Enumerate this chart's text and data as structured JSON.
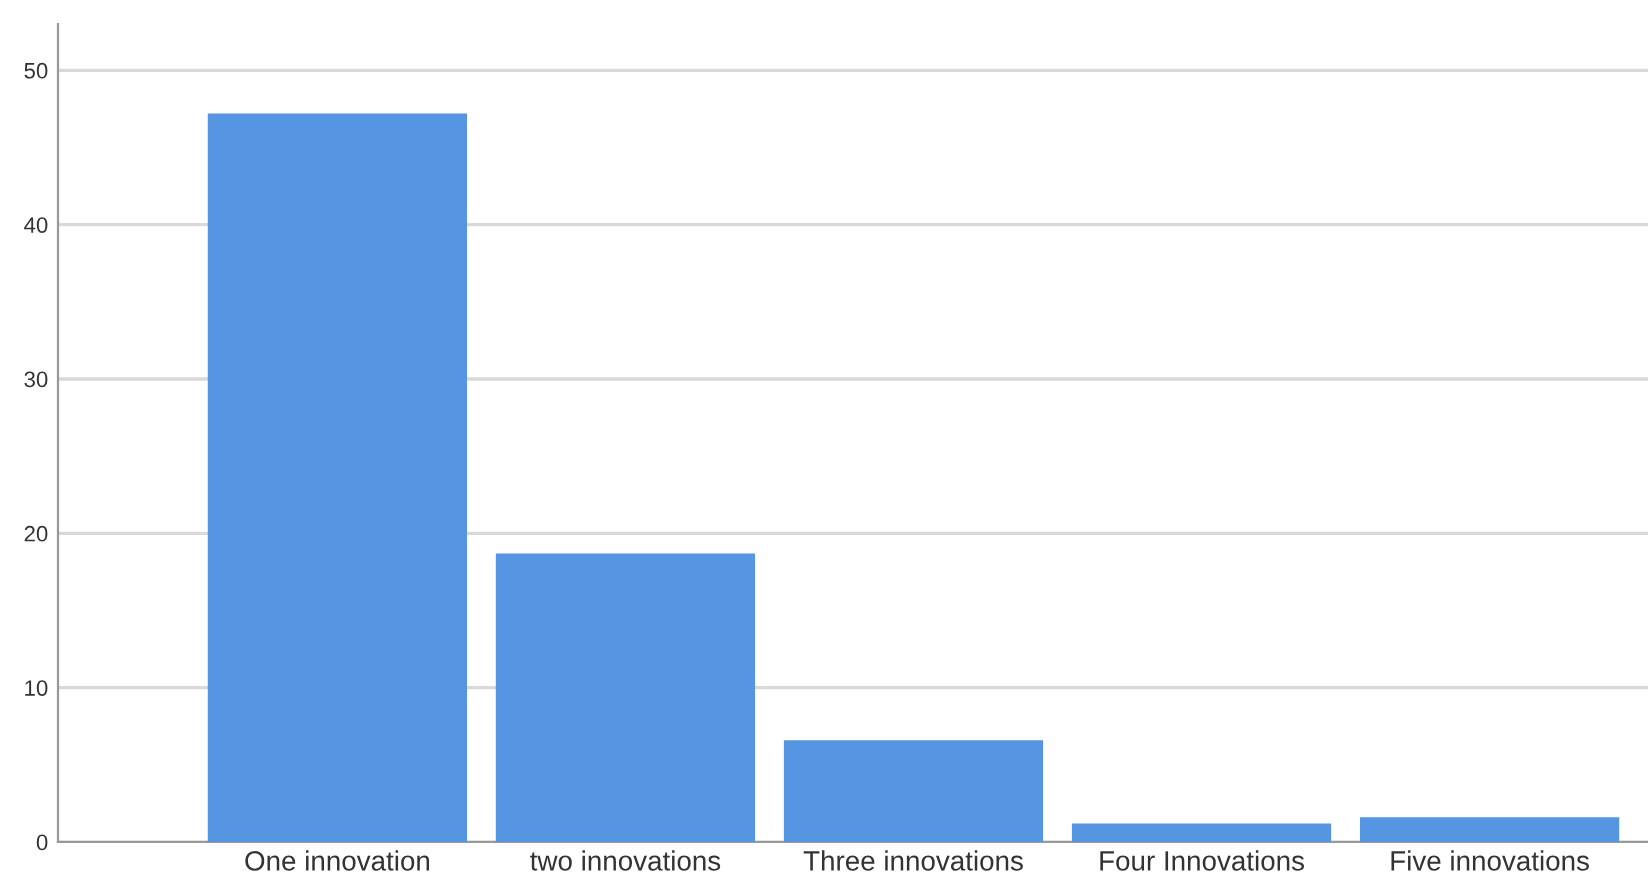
{
  "chart_data": {
    "type": "bar",
    "categories": [
      "One innovation",
      "two innovations",
      "Three innovations",
      "Four Innovations",
      "Five innovations"
    ],
    "values": [
      47.2,
      18.7,
      6.6,
      1.2,
      1.6
    ],
    "color": "#5595e2",
    "ylim": [
      0,
      53
    ],
    "yticks": [
      0,
      10,
      20,
      30,
      40,
      50
    ],
    "grid": "y"
  }
}
